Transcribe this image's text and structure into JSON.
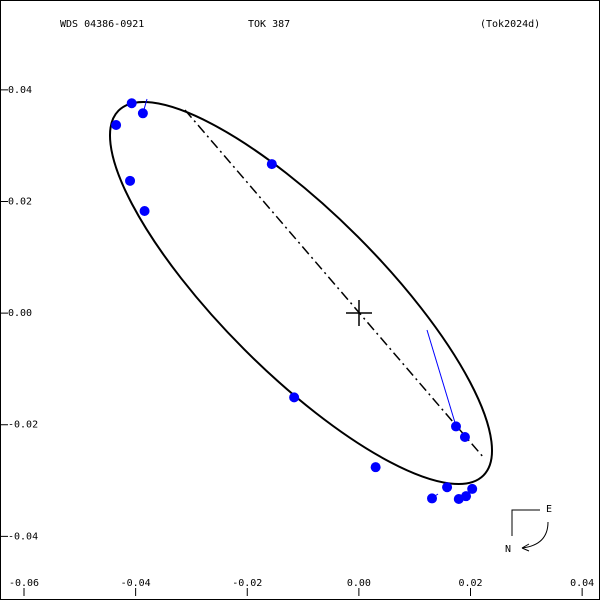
{
  "chart_data": {
    "type": "scatter",
    "title": "WDS 04386-0921",
    "subtitle": "TOK 387",
    "reference": "(Tok2024d)",
    "compass_east": "E",
    "compass_north": "N",
    "x": [
      -0.0407,
      -0.0387,
      -0.0435,
      -0.041,
      -0.0384,
      -0.0156,
      -0.0116,
      0.003,
      0.0131,
      0.0158,
      0.0174,
      0.019,
      0.0179,
      0.0192,
      0.0203
    ],
    "values": [
      0.0376,
      0.0358,
      0.0337,
      0.0237,
      0.0183,
      0.0267,
      -0.0151,
      -0.0276,
      -0.0332,
      -0.0312,
      -0.0203,
      -0.0222,
      -0.0333,
      -0.0328,
      -0.0315
    ],
    "color": "#0000ff",
    "xlim": [
      -0.0643,
      0.0432
    ],
    "ylim": [
      -0.0514,
      0.0561
    ],
    "xticks": [
      -0.06,
      -0.04,
      -0.02,
      {
        "value": 0,
        "label": "0.00"
      },
      0.02,
      0.04
    ],
    "yticks": [
      -0.04,
      -0.02,
      {
        "value": 0,
        "label": "0.00"
      },
      0.02,
      0.04
    ]
  }
}
